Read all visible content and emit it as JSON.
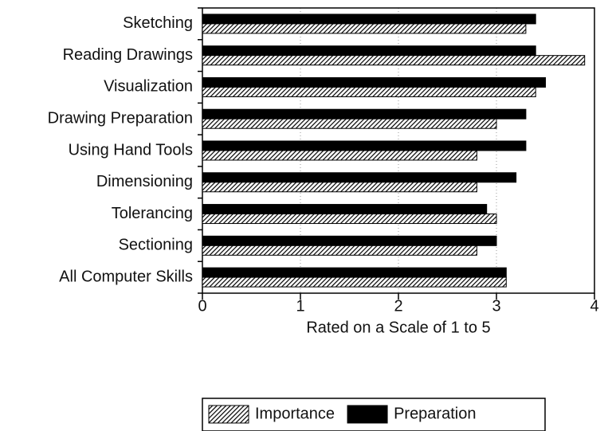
{
  "chart_data": {
    "type": "bar",
    "orientation": "horizontal",
    "xlabel": "Rated on a Scale of 1 to 5",
    "categories": [
      "Sketching",
      "Reading Drawings",
      "Visualization",
      "Drawing Preparation",
      "Using Hand Tools",
      "Dimensioning",
      "Tolerancing",
      "Sectioning",
      "All Computer Skills"
    ],
    "series": [
      {
        "name": "Importance",
        "color": "#000000",
        "hatch": true,
        "values": [
          3.3,
          3.9,
          3.4,
          3.0,
          2.8,
          2.8,
          3.0,
          2.8,
          3.1
        ]
      },
      {
        "name": "Preparation",
        "color": "#000000",
        "hatch": false,
        "values": [
          3.4,
          3.4,
          3.5,
          3.3,
          3.3,
          3.2,
          2.9,
          3.0,
          3.1
        ]
      }
    ],
    "xlim": [
      0,
      4
    ],
    "xticks": [
      0,
      1,
      2,
      3,
      4
    ],
    "grid": true,
    "legend": "bottom"
  }
}
